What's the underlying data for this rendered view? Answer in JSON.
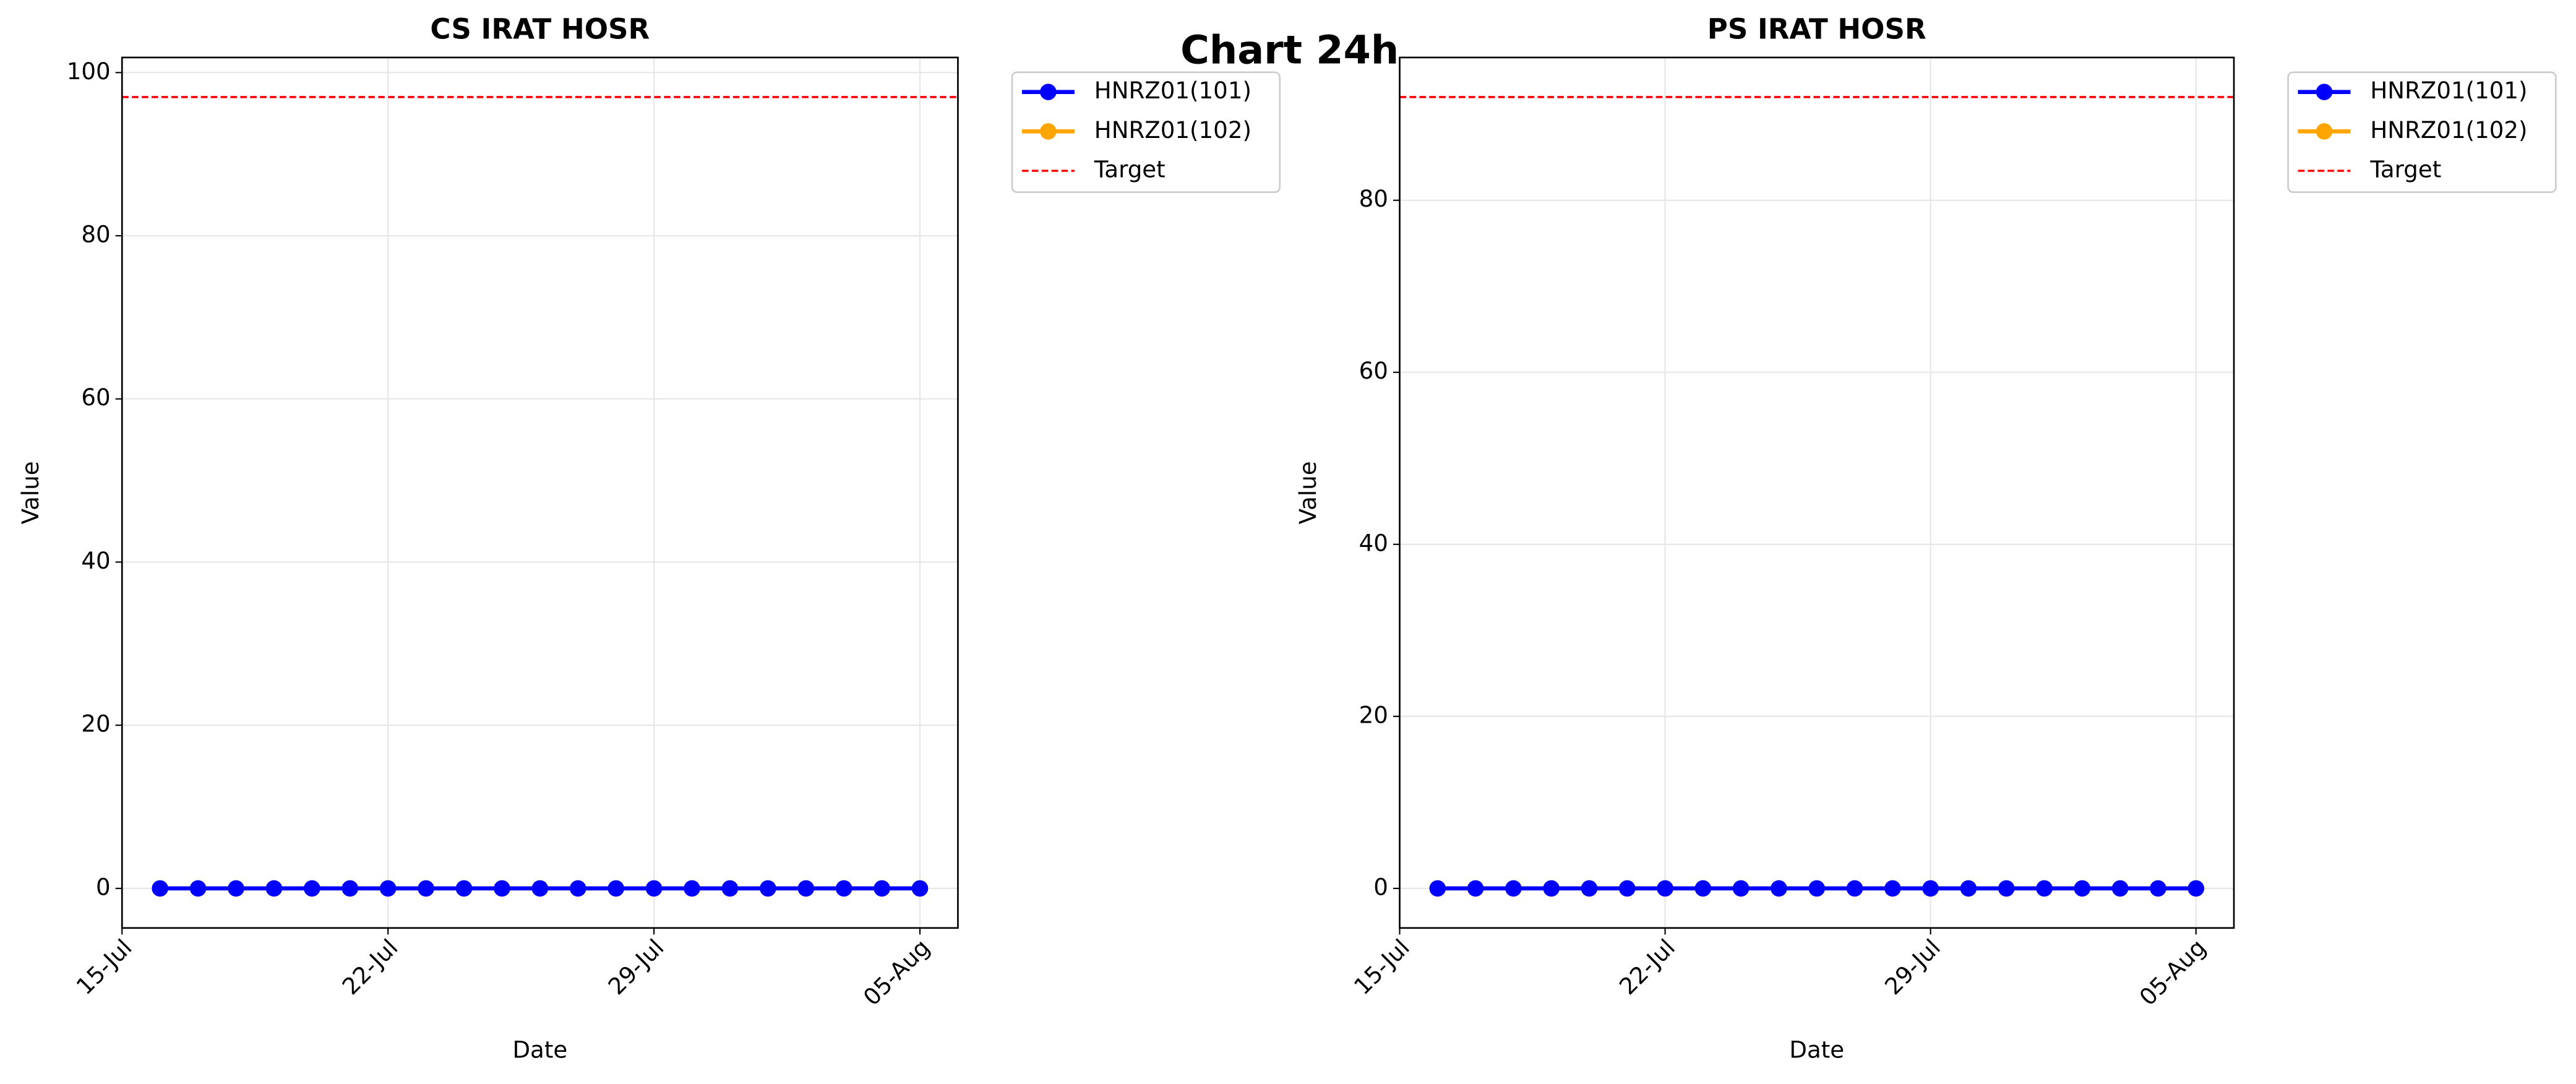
{
  "title": "Chart 24h",
  "chart_data": [
    {
      "type": "line",
      "title": "CS IRAT HOSR",
      "xlabel": "Date",
      "ylabel": "Value",
      "x": [
        "16-Jul",
        "17-Jul",
        "18-Jul",
        "19-Jul",
        "20-Jul",
        "21-Jul",
        "22-Jul",
        "23-Jul",
        "24-Jul",
        "25-Jul",
        "26-Jul",
        "27-Jul",
        "28-Jul",
        "29-Jul",
        "30-Jul",
        "31-Jul",
        "01-Aug",
        "02-Aug",
        "03-Aug",
        "04-Aug",
        "05-Aug"
      ],
      "series": [
        {
          "name": "HNRZ01(101)",
          "color": "#0000ff",
          "values": [
            0,
            0,
            0,
            0,
            0,
            0,
            0,
            0,
            0,
            0,
            0,
            0,
            0,
            0,
            0,
            0,
            0,
            0,
            0,
            0,
            0
          ]
        },
        {
          "name": "HNRZ01(102)",
          "color": "#ffa500",
          "values": [
            0,
            0,
            0,
            0,
            0,
            0,
            0,
            0,
            0,
            0,
            0,
            0,
            0,
            0,
            0,
            0,
            0,
            0,
            0,
            0,
            0
          ]
        }
      ],
      "target": {
        "name": "Target",
        "value": 97,
        "color": "#ff0000"
      },
      "xlim": [
        "15-Jul",
        "06-Aug"
      ],
      "xticks": [
        "15-Jul",
        "22-Jul",
        "29-Jul",
        "05-Aug"
      ],
      "ylim": [
        -4.85,
        101.85
      ],
      "yticks": [
        0,
        20,
        40,
        60,
        80,
        100
      ],
      "grid": true,
      "legend": "outside upper right"
    },
    {
      "type": "line",
      "title": "PS IRAT HOSR",
      "xlabel": "Date",
      "ylabel": "Value",
      "x": [
        "16-Jul",
        "17-Jul",
        "18-Jul",
        "19-Jul",
        "20-Jul",
        "21-Jul",
        "22-Jul",
        "23-Jul",
        "24-Jul",
        "25-Jul",
        "26-Jul",
        "27-Jul",
        "28-Jul",
        "29-Jul",
        "30-Jul",
        "31-Jul",
        "01-Aug",
        "02-Aug",
        "03-Aug",
        "04-Aug",
        "05-Aug"
      ],
      "series": [
        {
          "name": "HNRZ01(101)",
          "color": "#0000ff",
          "values": [
            0,
            0,
            0,
            0,
            0,
            0,
            0,
            0,
            0,
            0,
            0,
            0,
            0,
            0,
            0,
            0,
            0,
            0,
            0,
            0,
            0
          ]
        },
        {
          "name": "HNRZ01(102)",
          "color": "#ffa500",
          "values": [
            0,
            0,
            0,
            0,
            0,
            0,
            0,
            0,
            0,
            0,
            0,
            0,
            0,
            0,
            0,
            0,
            0,
            0,
            0,
            0,
            0
          ]
        }
      ],
      "target": {
        "name": "Target",
        "value": 92,
        "color": "#ff0000"
      },
      "xlim": [
        "15-Jul",
        "06-Aug"
      ],
      "xticks": [
        "15-Jul",
        "22-Jul",
        "29-Jul",
        "05-Aug"
      ],
      "ylim": [
        -4.6,
        96.6
      ],
      "yticks": [
        0,
        20,
        40,
        60,
        80
      ],
      "grid": true,
      "legend": "outside upper right"
    }
  ]
}
